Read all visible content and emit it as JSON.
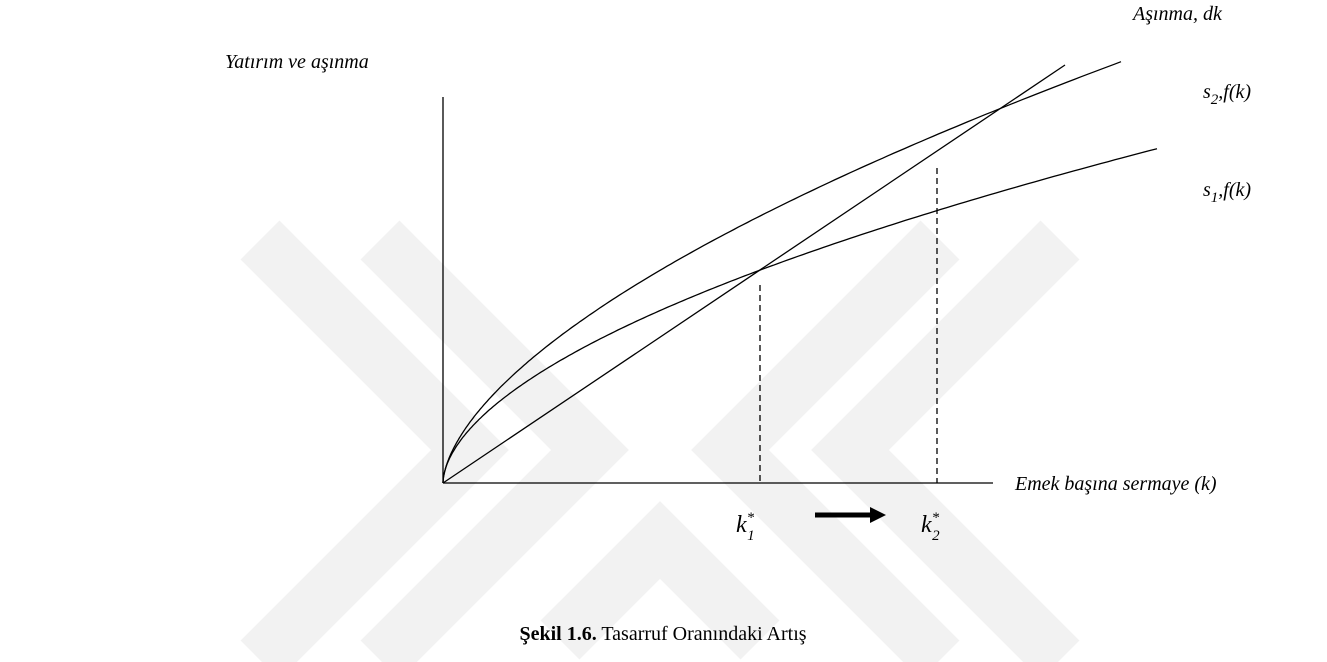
{
  "diagram": {
    "y_axis_label": "Yatırım ve aşınma",
    "x_axis_label": "Emek başına sermaye (k)",
    "depreciation_label": "Aşınma, dk",
    "curve_s2": {
      "base": "s",
      "sub": "2",
      "rest": ",f(k)"
    },
    "curve_s1": {
      "base": "s",
      "sub": "1",
      "rest": ",f(k)"
    },
    "k1": {
      "base": "k",
      "sup": "*",
      "sub": "1"
    },
    "k2": {
      "base": "k",
      "sup": "*",
      "sub": "2"
    },
    "caption": {
      "number": "Şekil 1.6.",
      "text": " Tasarruf Oranındaki Artış"
    }
  }
}
